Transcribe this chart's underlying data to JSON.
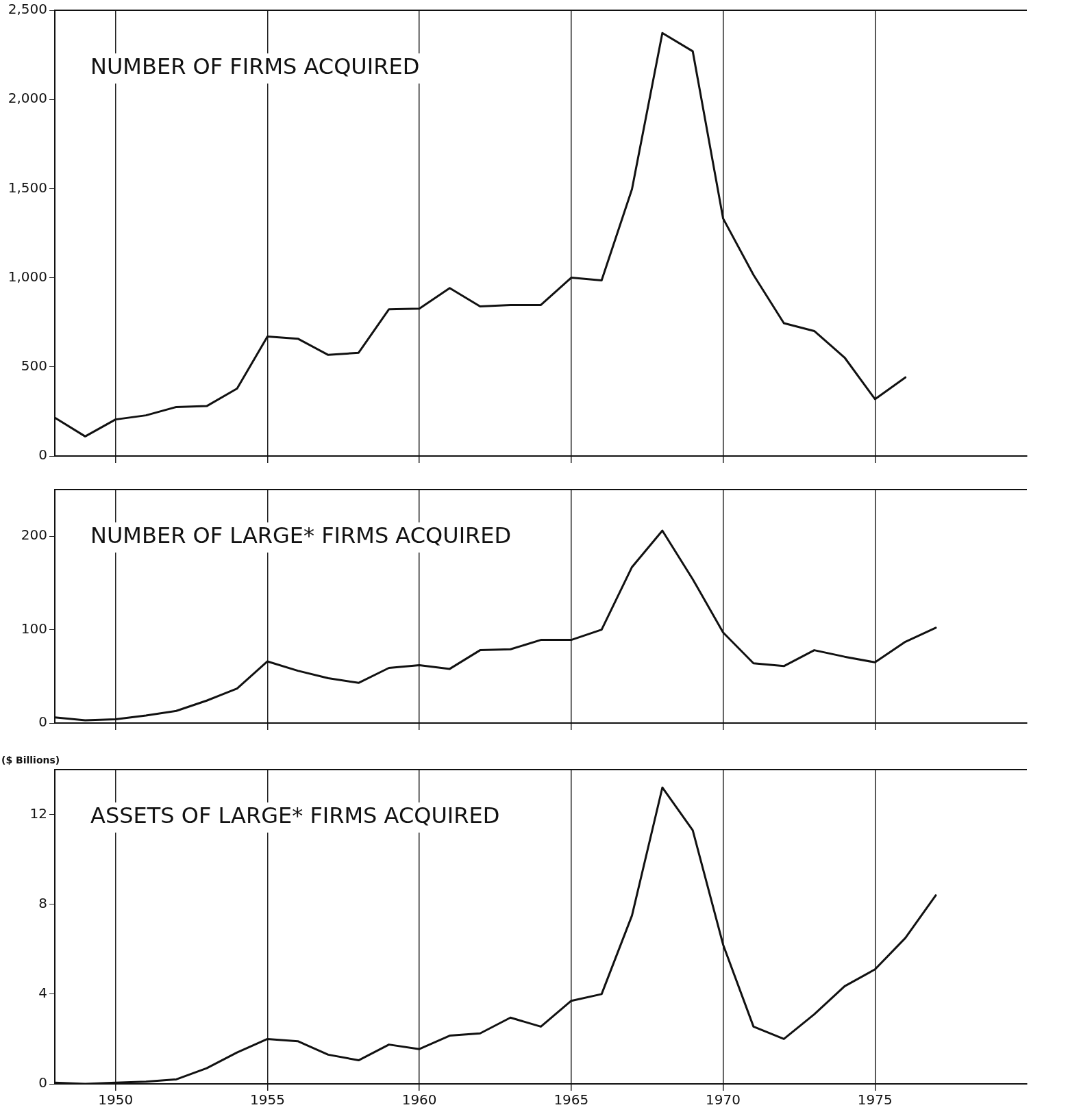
{
  "chart_data": [
    {
      "type": "line",
      "title": "NUMBER OF FIRMS ACQUIRED",
      "x": [
        1948,
        1949,
        1950,
        1951,
        1952,
        1953,
        1954,
        1955,
        1956,
        1957,
        1958,
        1959,
        1960,
        1961,
        1962,
        1963,
        1964,
        1965,
        1966,
        1967,
        1968,
        1969,
        1970,
        1971,
        1972,
        1973,
        1974,
        1975,
        1976
      ],
      "values": [
        215,
        110,
        205,
        228,
        275,
        280,
        378,
        670,
        658,
        567,
        579,
        823,
        827,
        942,
        839,
        847,
        847,
        1000,
        985,
        1497,
        2372,
        2270,
        1332,
        1016,
        745,
        701,
        552,
        319,
        441
      ],
      "color": "#111111",
      "xlim": [
        1948,
        1980
      ],
      "xticks": [
        1950,
        1955,
        1960,
        1965,
        1970,
        1975
      ],
      "ylim": [
        0,
        2500
      ],
      "yticks": [
        0,
        500,
        {
          "value": 1000,
          "label": "1,000"
        },
        {
          "value": 1500,
          "label": "1,500"
        },
        {
          "value": 2000,
          "label": "2,000"
        },
        {
          "value": 2500,
          "label": "2,500"
        }
      ],
      "grid": "x",
      "marker": "none",
      "tick_labels": "y"
    },
    {
      "type": "line",
      "title": "NUMBER OF LARGE* FIRMS ACQUIRED",
      "x": [
        1948,
        1949,
        1950,
        1951,
        1952,
        1953,
        1954,
        1955,
        1956,
        1957,
        1958,
        1959,
        1960,
        1961,
        1962,
        1963,
        1964,
        1965,
        1966,
        1967,
        1968,
        1969,
        1970,
        1971,
        1972,
        1973,
        1974,
        1975,
        1976,
        1977
      ],
      "values": [
        6,
        3,
        4,
        8,
        13,
        24,
        37,
        66,
        56,
        48,
        43,
        59,
        62,
        58,
        78,
        79,
        89,
        89,
        100,
        167,
        206,
        154,
        97,
        64,
        61,
        78,
        71,
        65,
        87,
        102
      ],
      "color": "#111111",
      "xlim": [
        1948,
        1980
      ],
      "xticks": [
        1950,
        1955,
        1960,
        1965,
        1970,
        1975
      ],
      "ylim": [
        0,
        250
      ],
      "yticks": [
        0,
        100,
        200
      ],
      "grid": "x",
      "marker": "none",
      "tick_labels": "y"
    },
    {
      "type": "line",
      "title": "ASSETS OF LARGE* FIRMS ACQUIRED",
      "ylabel": "($ Billions)",
      "x": [
        1948,
        1949,
        1950,
        1951,
        1952,
        1953,
        1954,
        1955,
        1956,
        1957,
        1958,
        1959,
        1960,
        1961,
        1962,
        1963,
        1964,
        1965,
        1966,
        1967,
        1968,
        1969,
        1970,
        1971,
        1972,
        1973,
        1974,
        1975,
        1976,
        1977
      ],
      "values": [
        0.05,
        0,
        0.05,
        0.1,
        0.2,
        0.7,
        1.4,
        2.0,
        1.9,
        1.3,
        1.05,
        1.75,
        1.55,
        2.15,
        2.25,
        2.95,
        2.55,
        3.7,
        4.0,
        7.5,
        13.2,
        11.3,
        6.2,
        2.55,
        2.0,
        3.1,
        4.35,
        5.1,
        6.5,
        8.4
      ],
      "color": "#111111",
      "xlim": [
        1948,
        1980
      ],
      "xticks": [
        1950,
        1955,
        1960,
        1965,
        1970,
        1975
      ],
      "ylim": [
        0,
        14
      ],
      "yticks": [
        0,
        4,
        8,
        12
      ],
      "grid": "x",
      "marker": "none"
    }
  ]
}
